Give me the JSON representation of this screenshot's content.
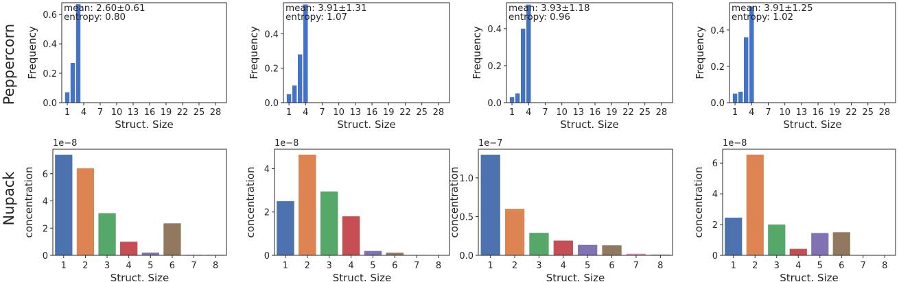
{
  "row_labels": {
    "top": "Peppercorn",
    "bottom": "Nupack"
  },
  "colors": {
    "top_bar": "#4472c4",
    "nupack_palette": [
      "#4c72b0",
      "#dd8452",
      "#55a868",
      "#c44e52",
      "#8172b3",
      "#937860",
      "#da8bc3",
      "#8c8c8c"
    ]
  },
  "chart_data": [
    {
      "type": "bar",
      "row": "top",
      "col": 0,
      "xlabel": "Struct. Size",
      "ylabel": "Frequency",
      "xlim": [
        0,
        30
      ],
      "ylim": [
        0,
        0.68
      ],
      "xticks": [
        1,
        4,
        7,
        10,
        13,
        16,
        19,
        22,
        25,
        28
      ],
      "yticks": [
        0.0,
        0.2,
        0.4,
        0.6
      ],
      "ytick_labels": [
        "0.0",
        "0.2",
        "0.4",
        "0.6"
      ],
      "x": [
        1,
        2,
        3
      ],
      "values": [
        0.07,
        0.27,
        0.67
      ],
      "annotation": [
        "mean: 2.60±0.61",
        "entropy: 0.80"
      ]
    },
    {
      "type": "bar",
      "row": "top",
      "col": 1,
      "xlabel": "Struct. Size",
      "ylabel": "Frequency",
      "xlim": [
        0,
        30
      ],
      "ylim": [
        0,
        0.58
      ],
      "xticks": [
        1,
        4,
        7,
        10,
        13,
        16,
        19,
        22,
        25,
        28
      ],
      "yticks": [
        0.0,
        0.2,
        0.4
      ],
      "ytick_labels": [
        "0.0",
        "0.2",
        "0.4"
      ],
      "x": [
        1,
        2,
        3,
        4
      ],
      "values": [
        0.05,
        0.1,
        0.28,
        0.57
      ],
      "annotation": [
        "mean: 3.91±1.31",
        "entropy: 1.07"
      ]
    },
    {
      "type": "bar",
      "row": "top",
      "col": 2,
      "xlabel": "Struct. Size",
      "ylabel": "Frequency",
      "xlim": [
        0,
        30
      ],
      "ylim": [
        0,
        0.54
      ],
      "xticks": [
        1,
        4,
        7,
        10,
        13,
        16,
        19,
        22,
        25,
        28
      ],
      "yticks": [
        0.0,
        0.2,
        0.4
      ],
      "ytick_labels": [
        "0.0",
        "0.2",
        "0.4"
      ],
      "x": [
        1,
        2,
        3,
        4
      ],
      "values": [
        0.03,
        0.05,
        0.4,
        0.53
      ],
      "annotation": [
        "mean: 3.93±1.18",
        "entropy: 0.96"
      ]
    },
    {
      "type": "bar",
      "row": "top",
      "col": 3,
      "xlabel": "Struct. Size",
      "ylabel": "Frequency",
      "xlim": [
        0,
        30
      ],
      "ylim": [
        0,
        0.55
      ],
      "xticks": [
        1,
        4,
        7,
        10,
        13,
        16,
        19,
        22,
        25,
        28
      ],
      "yticks": [
        0.0,
        0.2,
        0.4
      ],
      "ytick_labels": [
        "0.0",
        "0.2",
        "0.4"
      ],
      "x": [
        1,
        2,
        3,
        4
      ],
      "values": [
        0.05,
        0.06,
        0.36,
        0.53
      ],
      "annotation": [
        "mean: 3.91±1.25",
        "entropy: 1.02"
      ]
    },
    {
      "type": "bar",
      "row": "bottom",
      "col": 0,
      "xlabel": "Struct. Size",
      "ylabel": "concentration",
      "offset_text": "1e−8",
      "categories": [
        "1",
        "2",
        "3",
        "4",
        "5",
        "6",
        "7",
        "8"
      ],
      "values": [
        7.4,
        6.4,
        3.1,
        1.0,
        0.2,
        2.35,
        0.04,
        0.04
      ],
      "ylim": [
        0,
        7.8
      ],
      "yticks": [
        0,
        2,
        4,
        6
      ],
      "ytick_labels": [
        "0",
        "2",
        "4",
        "6"
      ]
    },
    {
      "type": "bar",
      "row": "bottom",
      "col": 1,
      "xlabel": "Struct. Size",
      "ylabel": "concentration",
      "offset_text": "1e−8",
      "categories": [
        "1",
        "2",
        "3",
        "4",
        "5",
        "6",
        "7",
        "8"
      ],
      "values": [
        2.5,
        4.65,
        2.95,
        1.8,
        0.2,
        0.12,
        0.02,
        0.01
      ],
      "ylim": [
        0,
        4.9
      ],
      "yticks": [
        0,
        2,
        4
      ],
      "ytick_labels": [
        "0",
        "2",
        "4"
      ]
    },
    {
      "type": "bar",
      "row": "bottom",
      "col": 2,
      "xlabel": "Struct. Size",
      "ylabel": "concentration",
      "offset_text": "1e−7",
      "categories": [
        "1",
        "2",
        "3",
        "4",
        "5",
        "6",
        "7",
        "8"
      ],
      "values": [
        1.3,
        0.6,
        0.29,
        0.19,
        0.135,
        0.13,
        0.02,
        0.01
      ],
      "ylim": [
        0,
        1.37
      ],
      "yticks": [
        0.0,
        0.5,
        1.0
      ],
      "ytick_labels": [
        "0.0",
        "0.5",
        "1.0"
      ]
    },
    {
      "type": "bar",
      "row": "bottom",
      "col": 3,
      "xlabel": "Struct. Size",
      "ylabel": "concentration",
      "offset_text": "1e−8",
      "categories": [
        "1",
        "2",
        "3",
        "4",
        "5",
        "6",
        "7",
        "8"
      ],
      "values": [
        2.45,
        6.55,
        2.0,
        0.42,
        1.45,
        1.5,
        0.0,
        0.0
      ],
      "ylim": [
        0,
        6.9
      ],
      "yticks": [
        0,
        2,
        4,
        6
      ],
      "ytick_labels": [
        "0",
        "2",
        "4",
        "6"
      ]
    }
  ]
}
